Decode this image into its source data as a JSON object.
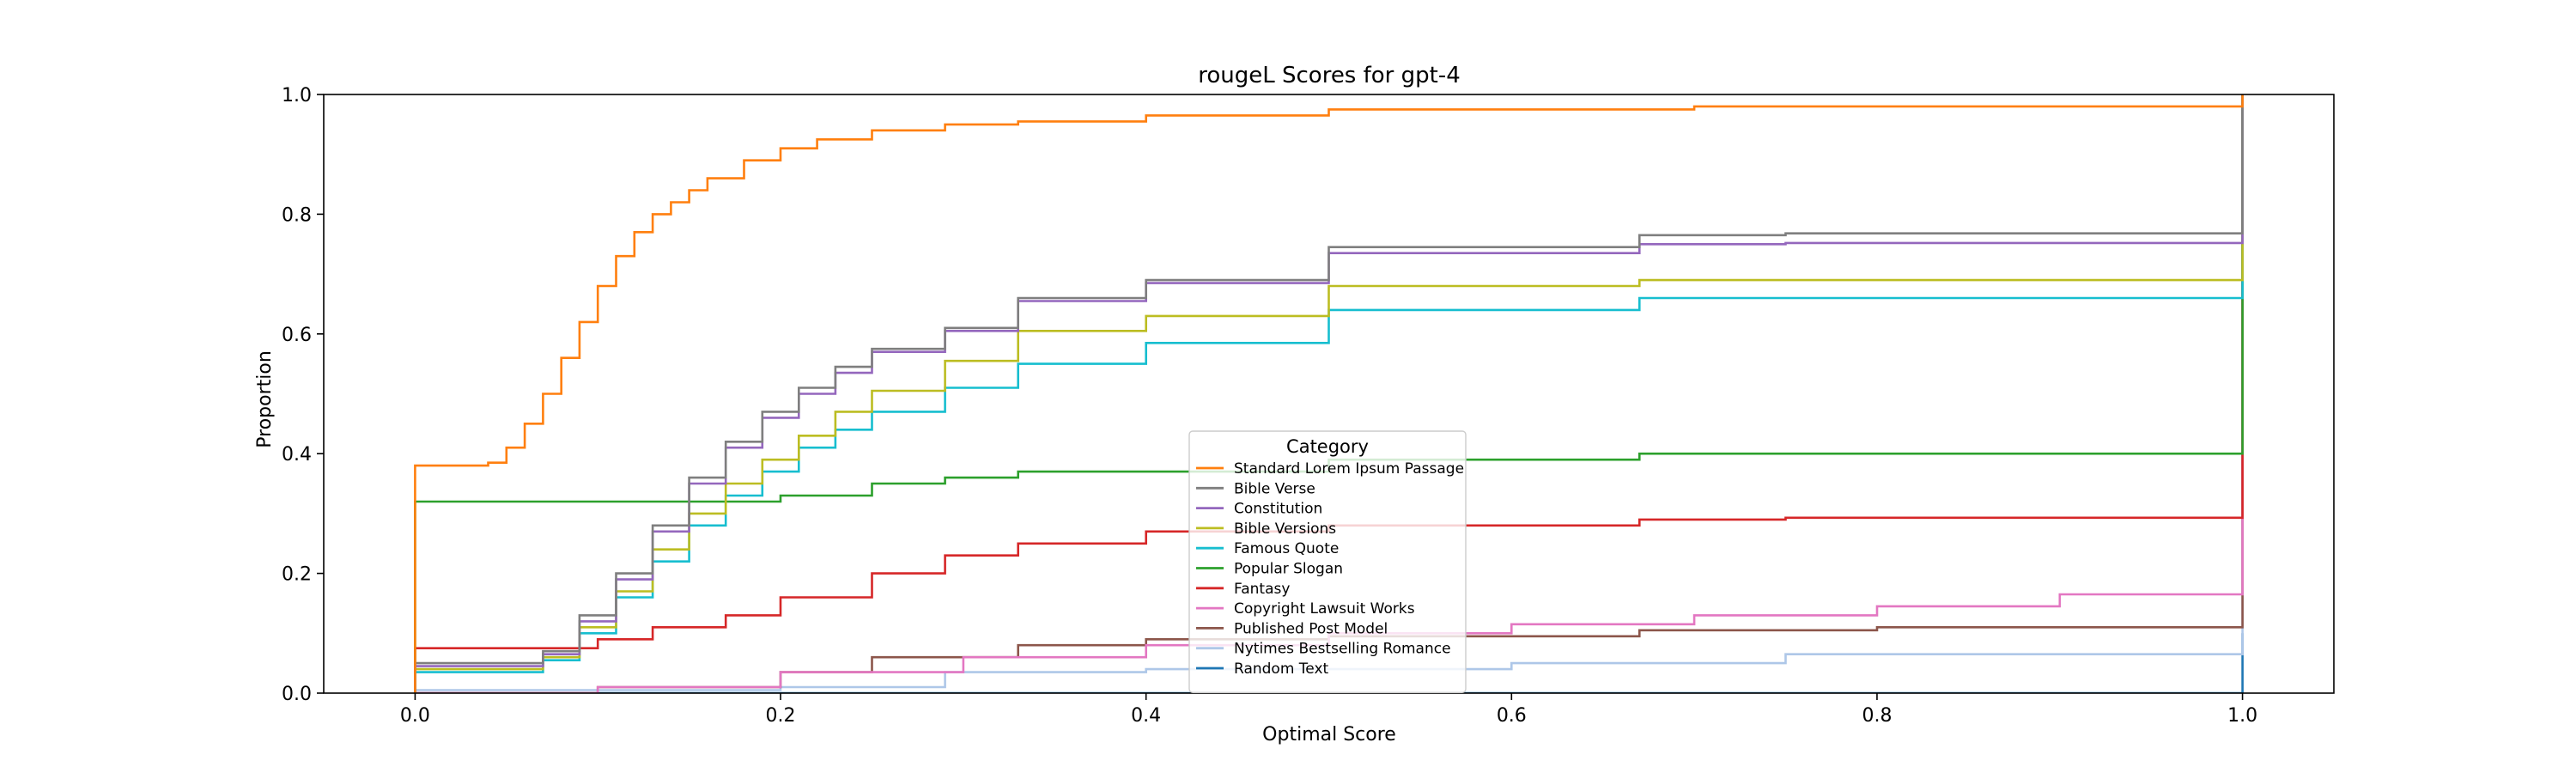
{
  "chart_data": {
    "type": "line",
    "step": true,
    "title": "rougeL Scores for gpt-4",
    "xlabel": "Optimal Score",
    "ylabel": "Proportion",
    "xlim": [
      -0.05,
      1.05
    ],
    "ylim": [
      0.0,
      1.0
    ],
    "xticks": [
      0.0,
      0.2,
      0.4,
      0.6,
      0.8,
      1.0
    ],
    "xtick_labels": [
      "0.0",
      "0.2",
      "0.4",
      "0.6",
      "0.8",
      "1.0"
    ],
    "yticks": [
      0.0,
      0.2,
      0.4,
      0.6,
      0.8,
      1.0
    ],
    "ytick_labels": [
      "0.0",
      "0.2",
      "0.4",
      "0.6",
      "0.8",
      "1.0"
    ],
    "grid": false,
    "legend": {
      "title": "Category",
      "placement": "lower-center"
    },
    "series": [
      {
        "name": "Standard Lorem Ipsum Passage",
        "color": "#ff7f0e",
        "x": [
          0.0,
          0.0,
          0.04,
          0.05,
          0.06,
          0.07,
          0.08,
          0.09,
          0.1,
          0.11,
          0.12,
          0.13,
          0.14,
          0.15,
          0.16,
          0.18,
          0.2,
          0.22,
          0.25,
          0.29,
          0.33,
          0.4,
          0.5,
          0.7,
          1.0,
          1.0
        ],
        "y": [
          0.0,
          0.38,
          0.385,
          0.41,
          0.45,
          0.5,
          0.56,
          0.62,
          0.68,
          0.73,
          0.77,
          0.8,
          0.82,
          0.84,
          0.86,
          0.89,
          0.91,
          0.925,
          0.94,
          0.95,
          0.955,
          0.965,
          0.975,
          0.98,
          0.98,
          1.0
        ]
      },
      {
        "name": "Bible Verse",
        "color": "#7f7f7f",
        "x": [
          0.0,
          0.0,
          0.05,
          0.07,
          0.09,
          0.11,
          0.13,
          0.15,
          0.17,
          0.19,
          0.21,
          0.23,
          0.25,
          0.29,
          0.33,
          0.4,
          0.5,
          0.67,
          0.75,
          1.0,
          1.0
        ],
        "y": [
          0.0,
          0.05,
          0.05,
          0.07,
          0.13,
          0.2,
          0.28,
          0.36,
          0.42,
          0.47,
          0.51,
          0.545,
          0.575,
          0.61,
          0.66,
          0.69,
          0.745,
          0.765,
          0.768,
          0.77,
          1.0
        ]
      },
      {
        "name": "Constitution",
        "color": "#9467bd",
        "x": [
          0.0,
          0.0,
          0.05,
          0.07,
          0.09,
          0.11,
          0.13,
          0.15,
          0.17,
          0.19,
          0.21,
          0.23,
          0.25,
          0.29,
          0.33,
          0.4,
          0.5,
          0.67,
          0.75,
          1.0,
          1.0
        ],
        "y": [
          0.0,
          0.045,
          0.045,
          0.065,
          0.12,
          0.19,
          0.27,
          0.35,
          0.41,
          0.46,
          0.5,
          0.535,
          0.57,
          0.605,
          0.655,
          0.685,
          0.735,
          0.75,
          0.752,
          0.755,
          1.0
        ]
      },
      {
        "name": "Bible Versions",
        "color": "#bcbd22",
        "x": [
          0.0,
          0.0,
          0.05,
          0.07,
          0.09,
          0.11,
          0.13,
          0.15,
          0.17,
          0.19,
          0.21,
          0.23,
          0.25,
          0.29,
          0.33,
          0.4,
          0.5,
          0.67,
          1.0,
          1.0
        ],
        "y": [
          0.0,
          0.04,
          0.04,
          0.06,
          0.11,
          0.17,
          0.24,
          0.3,
          0.35,
          0.39,
          0.43,
          0.47,
          0.505,
          0.555,
          0.605,
          0.63,
          0.68,
          0.69,
          0.695,
          1.0
        ]
      },
      {
        "name": "Famous Quote",
        "color": "#17becf",
        "x": [
          0.0,
          0.0,
          0.05,
          0.07,
          0.09,
          0.11,
          0.13,
          0.15,
          0.17,
          0.19,
          0.21,
          0.23,
          0.25,
          0.29,
          0.33,
          0.4,
          0.5,
          0.67,
          1.0,
          1.0
        ],
        "y": [
          0.0,
          0.035,
          0.035,
          0.055,
          0.1,
          0.16,
          0.22,
          0.28,
          0.33,
          0.37,
          0.41,
          0.44,
          0.47,
          0.51,
          0.55,
          0.585,
          0.64,
          0.66,
          0.68,
          1.0
        ]
      },
      {
        "name": "Popular Slogan",
        "color": "#2ca02c",
        "x": [
          0.0,
          0.0,
          0.18,
          0.2,
          0.25,
          0.29,
          0.33,
          0.5,
          0.67,
          1.0,
          1.0
        ],
        "y": [
          0.0,
          0.32,
          0.32,
          0.33,
          0.35,
          0.36,
          0.37,
          0.39,
          0.4,
          0.4,
          1.0
        ]
      },
      {
        "name": "Fantasy",
        "color": "#d62728",
        "x": [
          0.0,
          0.0,
          0.07,
          0.1,
          0.13,
          0.17,
          0.2,
          0.25,
          0.29,
          0.33,
          0.4,
          0.5,
          0.67,
          0.75,
          1.0,
          1.0
        ],
        "y": [
          0.0,
          0.075,
          0.075,
          0.09,
          0.11,
          0.13,
          0.16,
          0.2,
          0.23,
          0.25,
          0.27,
          0.28,
          0.29,
          0.293,
          0.295,
          1.0
        ]
      },
      {
        "name": "Copyright Lawsuit Works",
        "color": "#e377c2",
        "x": [
          0.0,
          0.0,
          0.1,
          0.2,
          0.3,
          0.4,
          0.5,
          0.6,
          0.7,
          0.8,
          0.9,
          1.0,
          1.0
        ],
        "y": [
          0.0,
          0.0,
          0.01,
          0.035,
          0.06,
          0.08,
          0.1,
          0.115,
          0.13,
          0.145,
          0.165,
          0.185,
          1.0
        ]
      },
      {
        "name": "Published Post Model",
        "color": "#8c564b",
        "x": [
          0.0,
          0.0,
          0.1,
          0.2,
          0.25,
          0.33,
          0.4,
          0.5,
          0.67,
          0.8,
          1.0,
          1.0
        ],
        "y": [
          0.0,
          0.0,
          0.01,
          0.035,
          0.06,
          0.08,
          0.09,
          0.095,
          0.105,
          0.11,
          0.12,
          1.0
        ]
      },
      {
        "name": "Nytimes Bestselling Romance",
        "color": "#aec7e8",
        "x": [
          0.0,
          0.0,
          0.2,
          0.29,
          0.4,
          0.6,
          0.75,
          1.0,
          1.0
        ],
        "y": [
          0.0,
          0.005,
          0.01,
          0.035,
          0.04,
          0.05,
          0.065,
          0.065,
          1.0
        ]
      },
      {
        "name": "Random Text",
        "color": "#1f77b4",
        "x": [
          0.0,
          1.0,
          1.0
        ],
        "y": [
          0.0,
          0.0,
          0.1
        ]
      }
    ]
  }
}
